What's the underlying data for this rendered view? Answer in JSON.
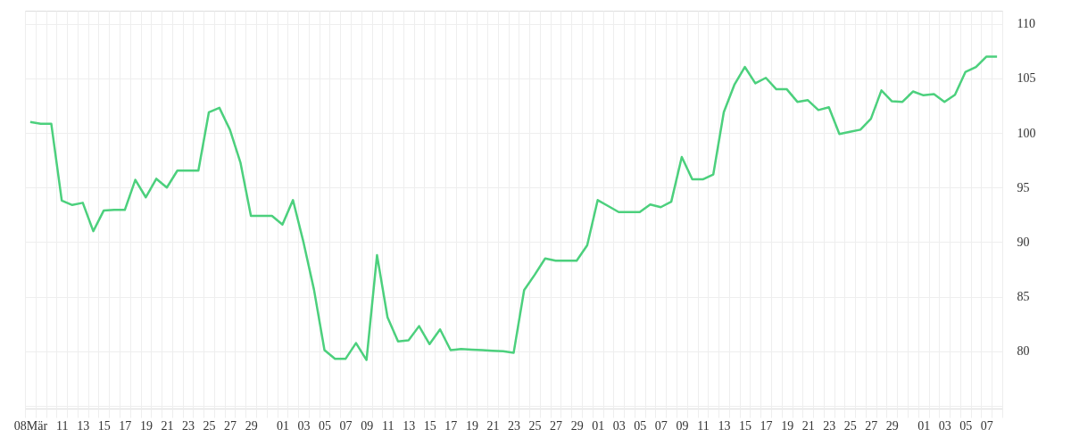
{
  "chart_data": {
    "type": "line",
    "categories": [
      "08Mär",
      null,
      null,
      "11",
      null,
      "13",
      null,
      "15",
      null,
      "17",
      null,
      "19",
      null,
      "21",
      null,
      "23",
      null,
      "25",
      null,
      "27",
      null,
      "29",
      null,
      null,
      "01",
      null,
      "03",
      null,
      "05",
      null,
      "07",
      null,
      "09",
      null,
      "11",
      null,
      "13",
      null,
      "15",
      null,
      "17",
      null,
      "19",
      null,
      "21",
      null,
      "23",
      null,
      "25",
      null,
      "27",
      null,
      "29",
      null,
      "01",
      null,
      "03",
      null,
      "05",
      null,
      "07",
      null,
      "09",
      null,
      "11",
      null,
      "13",
      null,
      "15",
      null,
      "17",
      null,
      "19",
      null,
      "21",
      null,
      "23",
      null,
      "25",
      null,
      "27",
      null,
      "29",
      null,
      null,
      "01",
      null,
      "03",
      null,
      "05",
      null,
      "07",
      null
    ],
    "series": [
      {
        "color": "#4cd07d",
        "values": [
          101.0,
          100.85,
          100.85,
          93.8,
          93.4,
          93.6,
          91.0,
          92.9,
          92.95,
          92.95,
          95.7,
          94.1,
          95.8,
          95.0,
          96.55,
          96.55,
          96.55,
          101.9,
          102.3,
          100.3,
          97.3,
          92.4,
          92.4,
          92.4,
          91.6,
          93.85,
          90.0,
          85.65,
          80.1,
          79.3,
          79.3,
          80.75,
          79.2,
          88.8,
          83.1,
          80.9,
          81.0,
          82.3,
          80.65,
          82.0,
          80.1,
          80.2,
          80.15,
          80.1,
          80.05,
          80.0,
          79.85,
          85.6,
          87.0,
          88.5,
          88.3,
          88.3,
          88.3,
          89.7,
          93.85,
          93.3,
          92.75,
          92.75,
          92.75,
          93.45,
          93.2,
          93.7,
          97.8,
          95.75,
          95.75,
          96.2,
          101.9,
          104.4,
          106.05,
          104.55,
          105.05,
          104.0,
          104.0,
          102.85,
          103.0,
          102.1,
          102.35,
          99.9,
          100.1,
          100.3,
          101.3,
          103.9,
          102.9,
          102.85,
          103.8,
          103.45,
          103.55,
          102.85,
          103.5,
          105.6,
          106.05,
          107.0,
          107.0
        ]
      }
    ],
    "ylim": [
      74.75,
      111.2
    ],
    "yticks": [
      {
        "value": 75,
        "label": null
      },
      80,
      85,
      90,
      95,
      100,
      105,
      110
    ],
    "grid": true,
    "legend": false,
    "marker": "none",
    "line_style": "solid"
  }
}
